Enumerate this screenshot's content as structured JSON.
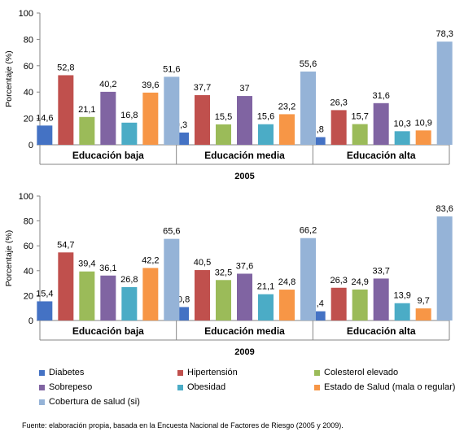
{
  "chart_data": [
    {
      "type": "bar",
      "title": "2005",
      "ylabel": "Porcentaje (%)",
      "ylim": [
        0,
        100
      ],
      "yticks": [
        0,
        20,
        40,
        60,
        80,
        100
      ],
      "categories": [
        "Educación baja",
        "Educación media",
        "Educación alta"
      ],
      "series": [
        {
          "name": "Diabetes",
          "color": "#4472C4",
          "values": [
            14.6,
            9.3,
            5.8
          ],
          "labels": [
            "14,6",
            "9,3",
            "5,8"
          ]
        },
        {
          "name": "Hipertensión",
          "color": "#C0504D",
          "values": [
            52.8,
            37.7,
            26.3
          ],
          "labels": [
            "52,8",
            "37,7",
            "26,3"
          ]
        },
        {
          "name": "Colesterol elevado",
          "color": "#9BBB59",
          "values": [
            21.1,
            15.5,
            15.7
          ],
          "labels": [
            "21,1",
            "15,5",
            "15,7"
          ]
        },
        {
          "name": "Sobrepeso",
          "color": "#8064A2",
          "values": [
            40.2,
            37,
            31.6
          ],
          "labels": [
            "40,2",
            "37",
            "31,6"
          ]
        },
        {
          "name": "Obesidad",
          "color": "#4BACC6",
          "values": [
            16.8,
            15.6,
            10.3
          ],
          "labels": [
            "16,8",
            "15,6",
            "10,3"
          ]
        },
        {
          "name": "Estado de Salud (mala o regular)",
          "color": "#F79646",
          "values": [
            39.6,
            23.2,
            10.9
          ],
          "labels": [
            "39,6",
            "23,2",
            "10,9"
          ]
        },
        {
          "name": "Cobertura de salud (si)",
          "color": "#95B3D7",
          "values": [
            51.6,
            55.6,
            78.3
          ],
          "labels": [
            "51,6",
            "55,6",
            "78,3"
          ]
        }
      ]
    },
    {
      "type": "bar",
      "title": "2009",
      "ylabel": "Porcentaje (%)",
      "ylim": [
        0,
        100
      ],
      "yticks": [
        0,
        20,
        40,
        60,
        80,
        100
      ],
      "categories": [
        "Educación baja",
        "Educación media",
        "Educación alta"
      ],
      "series": [
        {
          "name": "Diabetes",
          "color": "#4472C4",
          "values": [
            15.4,
            10.8,
            7.4
          ],
          "labels": [
            "15,4",
            "10,8",
            "7,4"
          ]
        },
        {
          "name": "Hipertensión",
          "color": "#C0504D",
          "values": [
            54.7,
            40.5,
            26.3
          ],
          "labels": [
            "54,7",
            "40,5",
            "26,3"
          ]
        },
        {
          "name": "Colesterol elevado",
          "color": "#9BBB59",
          "values": [
            39.4,
            32.5,
            24.9
          ],
          "labels": [
            "39,4",
            "32,5",
            "24,9"
          ]
        },
        {
          "name": "Sobrepeso",
          "color": "#8064A2",
          "values": [
            36.1,
            37.6,
            33.7
          ],
          "labels": [
            "36,1",
            "37,6",
            "33,7"
          ]
        },
        {
          "name": "Obesidad",
          "color": "#4BACC6",
          "values": [
            26.8,
            21.1,
            13.9
          ],
          "labels": [
            "26,8",
            "21,1",
            "13,9"
          ]
        },
        {
          "name": "Estado de Salud (mala o regular)",
          "color": "#F79646",
          "values": [
            42.2,
            24.8,
            9.7
          ],
          "labels": [
            "42,2",
            "24,8",
            "9,7"
          ]
        },
        {
          "name": "Cobertura de salud (si)",
          "color": "#95B3D7",
          "values": [
            65.6,
            66.2,
            83.6
          ],
          "labels": [
            "65,6",
            "66,2",
            "83,6"
          ]
        }
      ]
    }
  ],
  "legend": {
    "placement": "bottom",
    "items": [
      {
        "label": "Diabetes",
        "color": "#4472C4"
      },
      {
        "label": "Hipertensión",
        "color": "#C0504D"
      },
      {
        "label": "Colesterol elevado",
        "color": "#9BBB59"
      },
      {
        "label": "Sobrepeso",
        "color": "#8064A2"
      },
      {
        "label": "Obesidad",
        "color": "#4BACC6"
      },
      {
        "label": "Estado de Salud (mala o regular)",
        "color": "#F79646"
      },
      {
        "label": "Cobertura de salud (si)",
        "color": "#95B3D7"
      }
    ]
  },
  "source": "Fuente: elaboración propia, basada en la Encuesta Nacional de Factores de Riesgo (2005 y 2009)."
}
